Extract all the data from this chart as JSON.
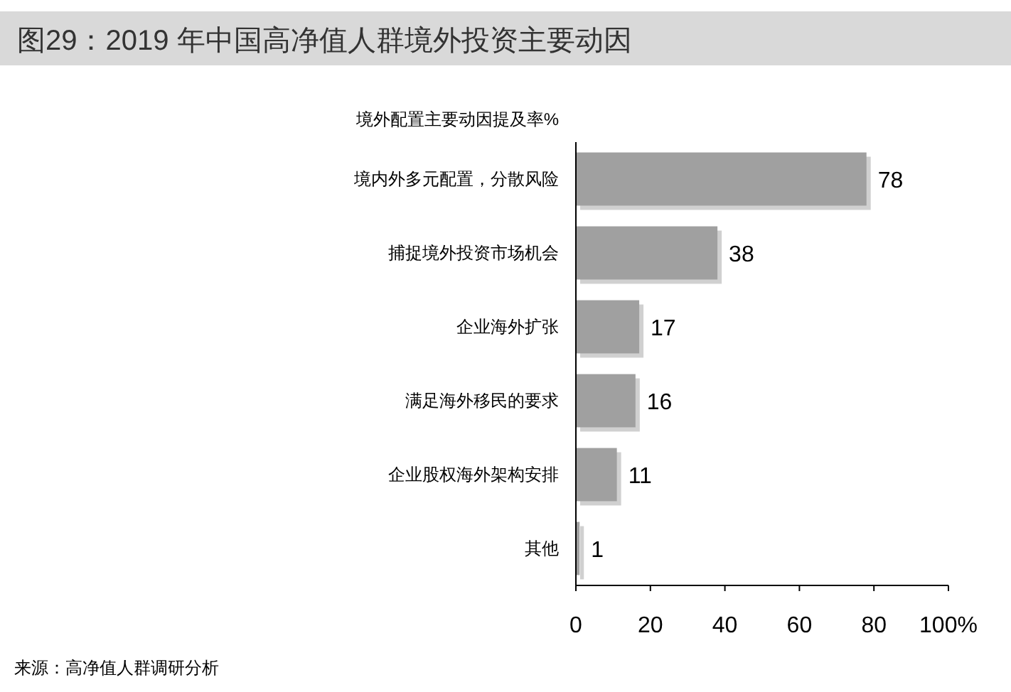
{
  "chart_data": {
    "type": "bar",
    "orientation": "horizontal",
    "title": "图29：2019 年中国高净值人群境外投资主要动因",
    "subtitle": "境外配置主要动因提及率%",
    "categories": [
      "境内外多元配置，分散风险",
      "捕捉境外投资市场机会",
      "企业海外扩张",
      "满足海外移民的要求",
      "企业股权海外架构安排",
      "其他"
    ],
    "values": [
      78,
      38,
      17,
      16,
      11,
      1
    ],
    "color": "#a0a0a0",
    "xlim": [
      0,
      100
    ],
    "xticks": [
      0,
      20,
      40,
      60,
      80,
      {
        "value": 100,
        "label": "100%"
      }
    ],
    "data_labels": true,
    "annotations": [
      "来源：高净值人群调研分析"
    ]
  }
}
